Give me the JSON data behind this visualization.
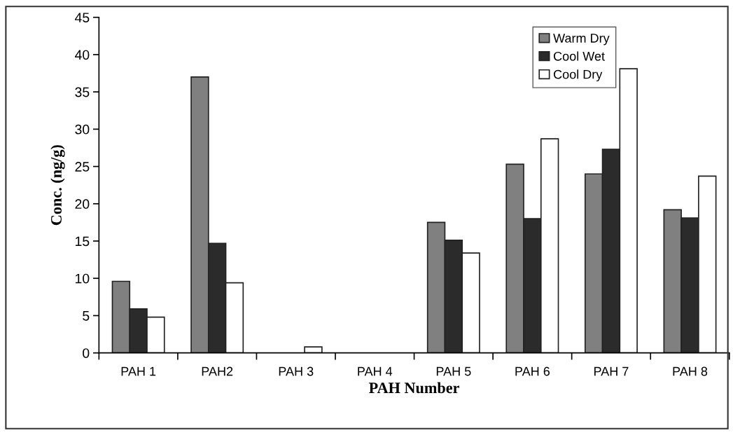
{
  "chart_data": {
    "type": "bar",
    "xlabel": "PAH Number",
    "ylabel": "Conc. (ng/g)",
    "categories": [
      "PAH 1",
      "PAH2",
      "PAH 3",
      "PAH 4",
      "PAH 5",
      "PAH 6",
      "PAH 7",
      "PAH 8"
    ],
    "series": [
      {
        "name": "Warm Dry",
        "color": "#808080",
        "values": [
          9.6,
          37.0,
          null,
          null,
          17.5,
          25.3,
          24.0,
          19.2
        ]
      },
      {
        "name": "Cool Wet",
        "color": "#2b2b2b",
        "values": [
          5.9,
          14.7,
          null,
          null,
          15.1,
          18.0,
          27.3,
          18.1
        ]
      },
      {
        "name": "Cool Dry",
        "color": "#ffffff",
        "values": [
          4.8,
          9.4,
          0.8,
          null,
          13.4,
          28.7,
          38.1,
          23.7
        ]
      }
    ],
    "ylim": [
      0,
      45
    ],
    "yticks": [
      0,
      5,
      10,
      15,
      20,
      25,
      30,
      35,
      40,
      45
    ],
    "grid": false,
    "legend": "top right"
  }
}
